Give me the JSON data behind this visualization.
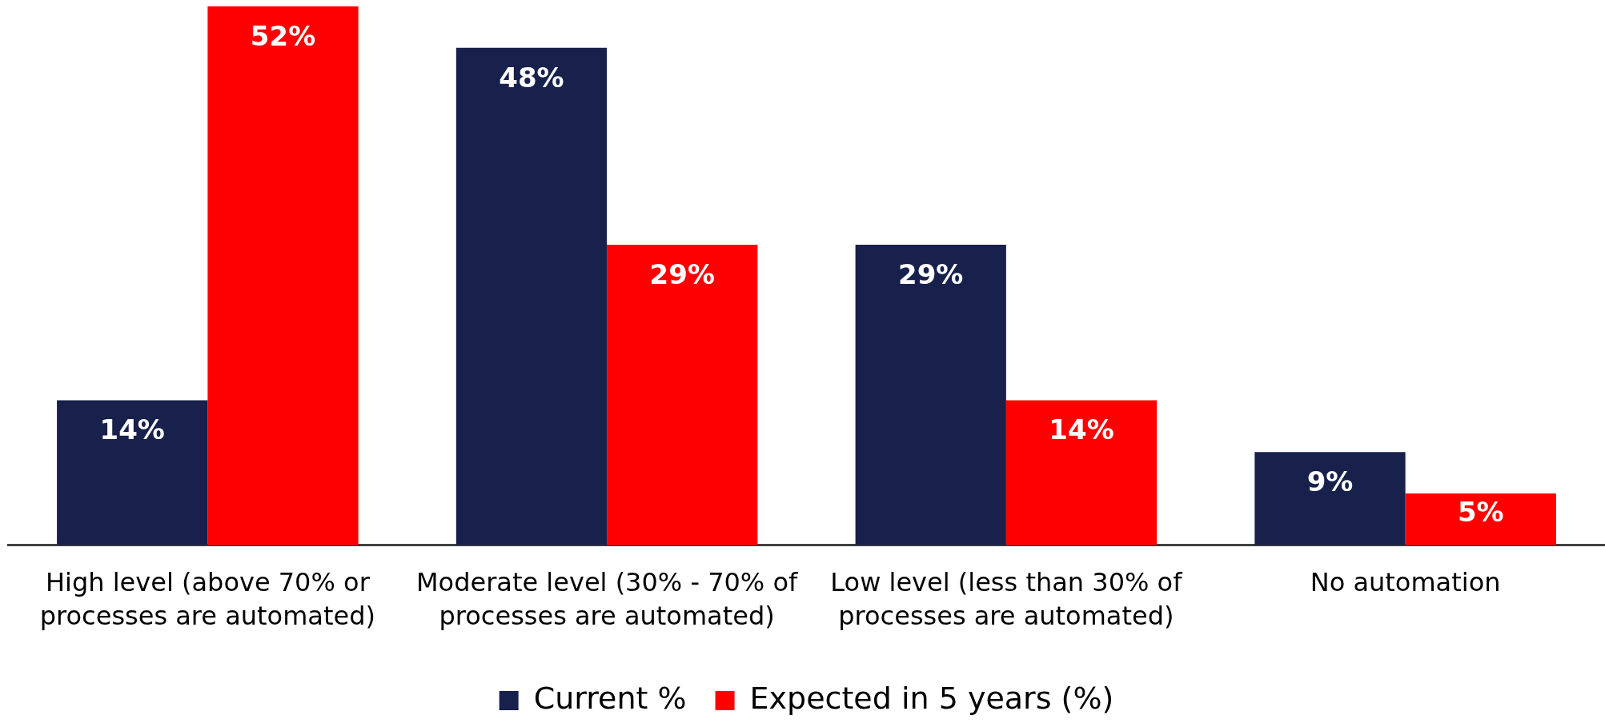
{
  "chart_data": {
    "type": "bar",
    "categories": [
      "High level (above 70% or processes are automated)",
      "Moderate level (30% - 70% of processes are automated)",
      "Low level (less than 30% of processes are automated)",
      "No automation"
    ],
    "series": [
      {
        "name": "Current %",
        "color": "#17214c",
        "values": [
          14,
          48,
          29,
          9
        ],
        "value_labels": [
          "14%",
          "48%",
          "29%",
          "9%"
        ]
      },
      {
        "name": "Expected in 5 years (%)",
        "color": "#ff0000",
        "values": [
          52,
          29,
          14,
          5
        ],
        "value_labels": [
          "52%",
          "29%",
          "14%",
          "5%"
        ]
      }
    ],
    "legend": "bottom",
    "grid": false,
    "tick_labels": "x"
  }
}
